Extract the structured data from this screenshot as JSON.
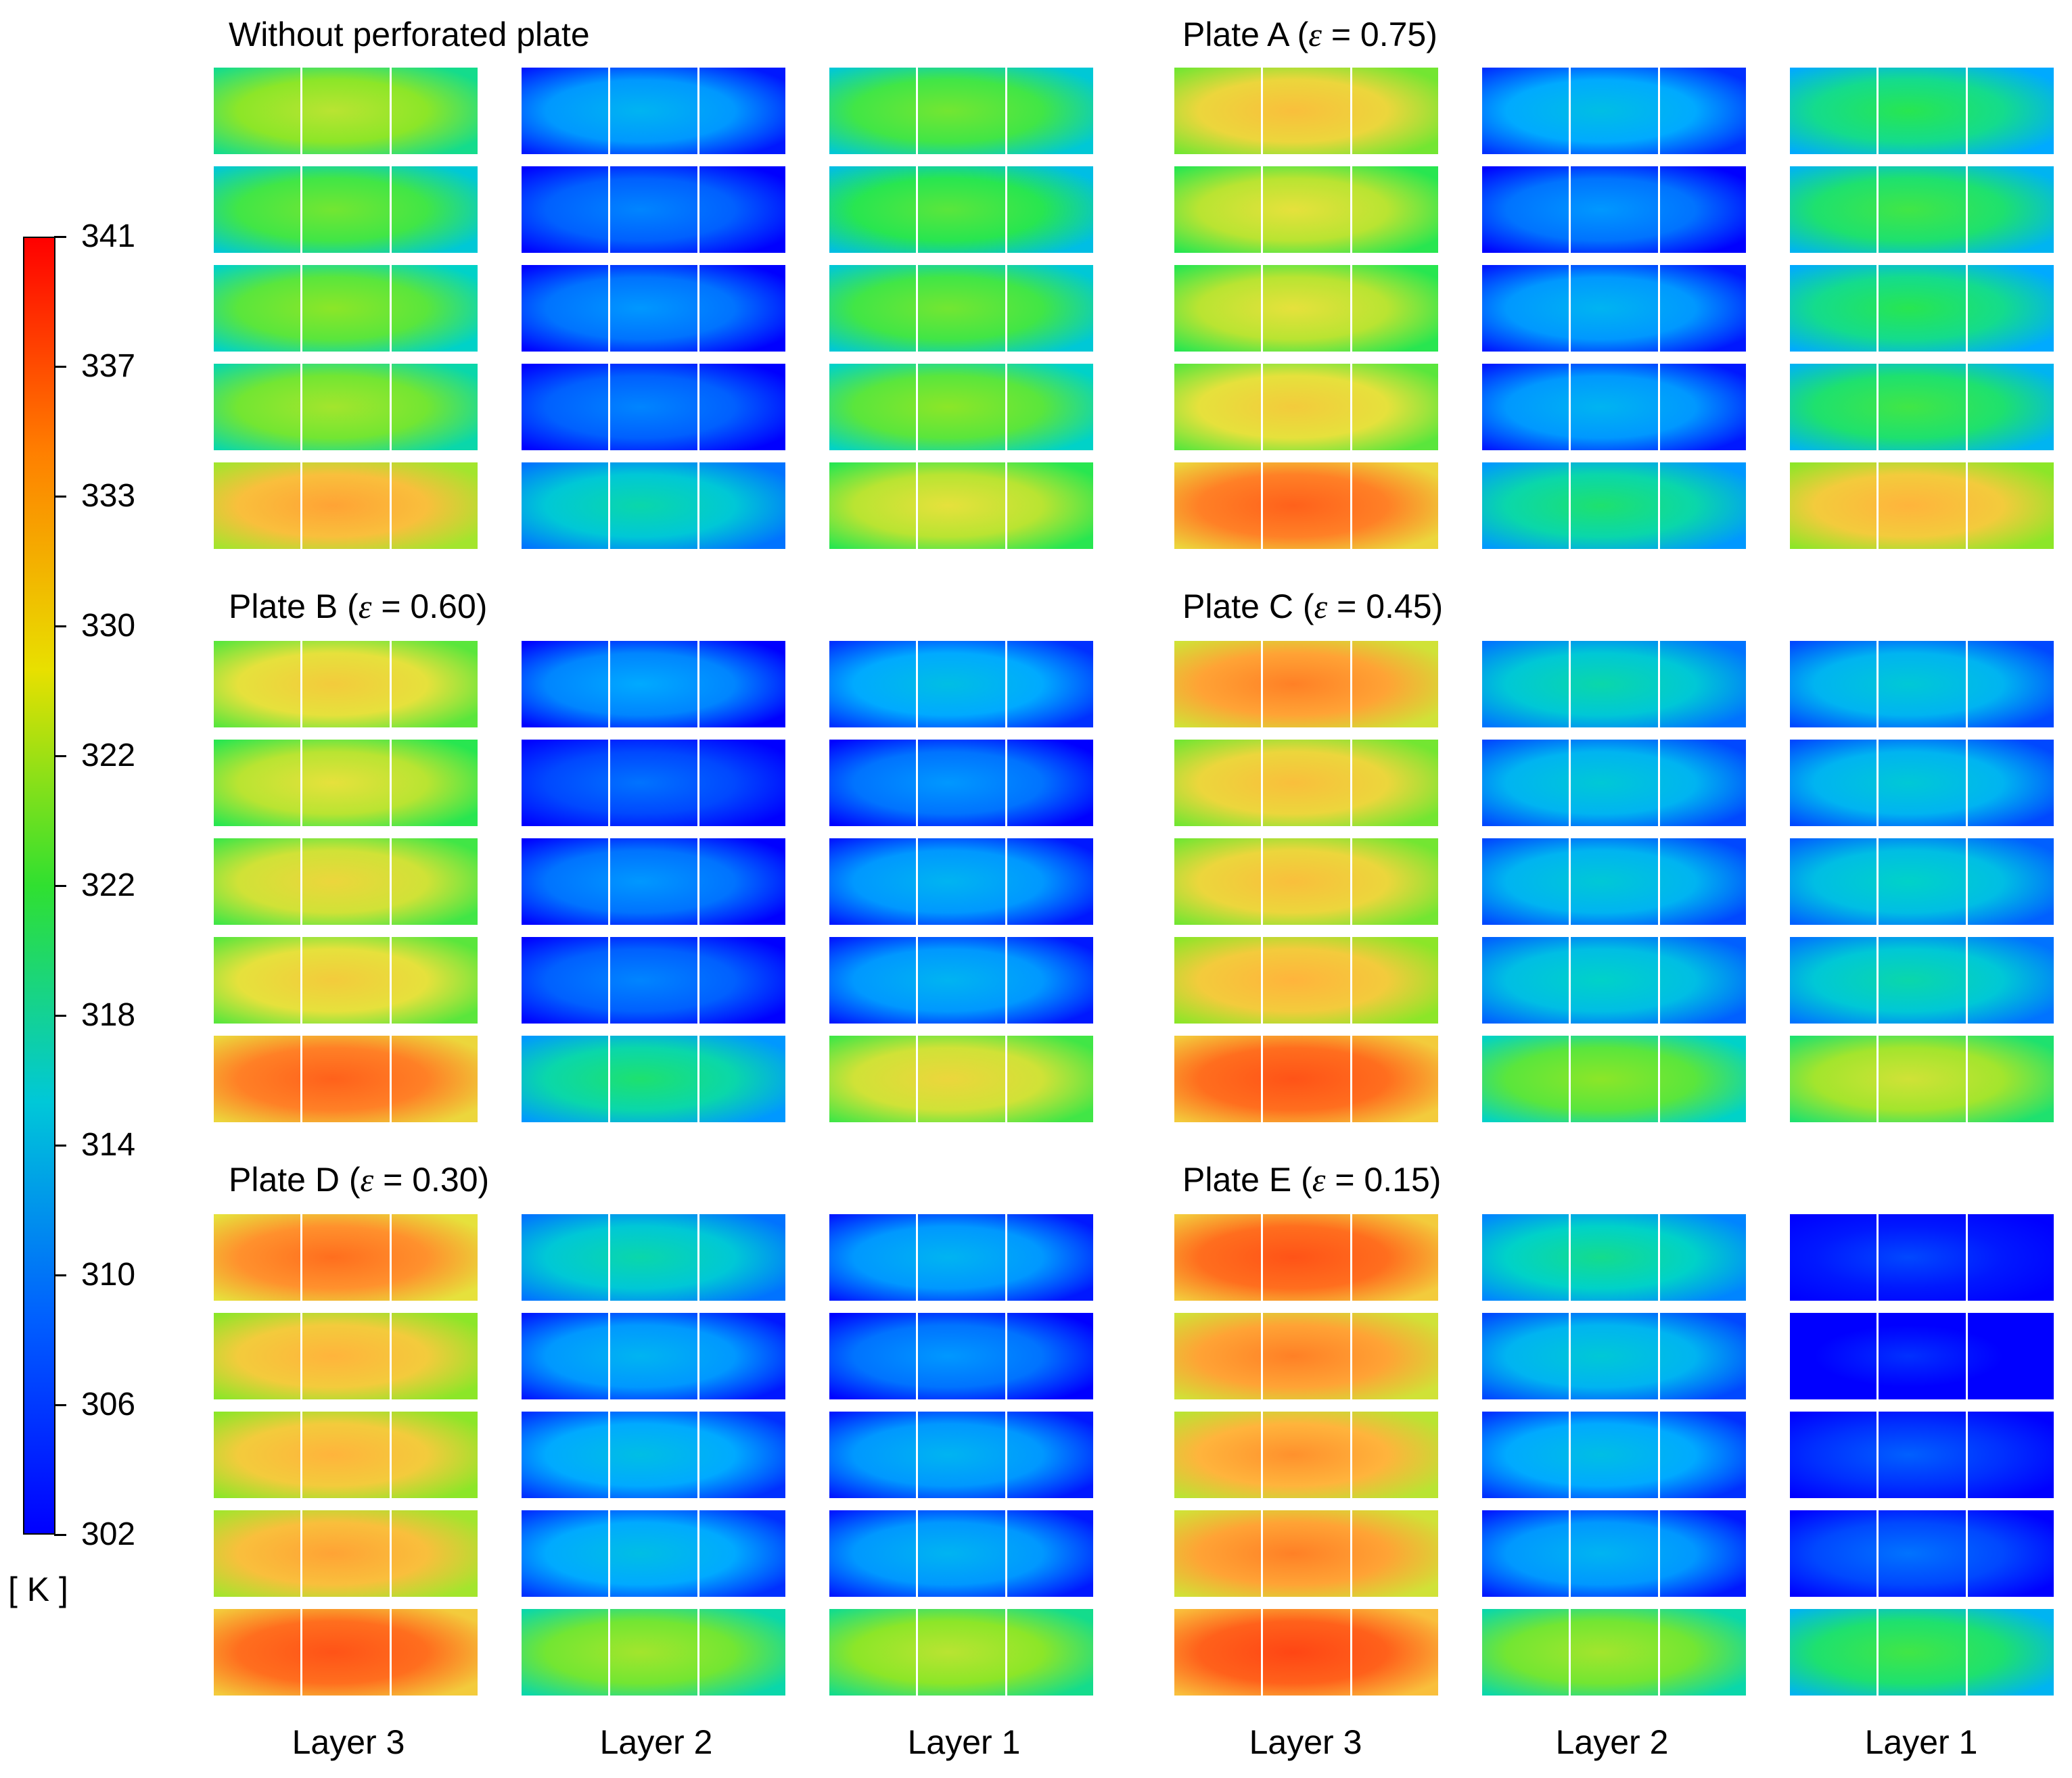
{
  "colorbar": {
    "ticks": [
      "341",
      "337",
      "333",
      "330",
      "322",
      "322",
      "318",
      "314",
      "310",
      "306",
      "302"
    ],
    "unit": "[ K ]",
    "colors": [
      "#ff0000",
      "#ff8000",
      "#e8e000",
      "#30e030",
      "#00c8d8",
      "#0060ff",
      "#0000ff"
    ]
  },
  "layer_labels": [
    "Layer 3",
    "Layer 2",
    "Layer 1"
  ],
  "panels": [
    {
      "title": "Without perforated plate",
      "eps": "",
      "rest": "",
      "temps": [
        [
          322,
          309,
          319
        ],
        [
          319,
          306,
          318
        ],
        [
          320,
          307,
          319
        ],
        [
          321,
          306,
          320
        ],
        [
          329,
          313,
          324
        ]
      ]
    },
    {
      "title": "Plate A (",
      "eps": "ε",
      "rest": " = 0.75)",
      "temps": [
        [
          327,
          310,
          316
        ],
        [
          324,
          307,
          317
        ],
        [
          324,
          309,
          316
        ],
        [
          326,
          309,
          317
        ],
        [
          333,
          315,
          328
        ]
      ]
    },
    {
      "title": "Plate B (",
      "eps": "ε",
      "rest": " = 0.60)",
      "temps": [
        [
          326,
          308,
          310
        ],
        [
          324,
          305,
          307
        ],
        [
          325,
          307,
          309
        ],
        [
          326,
          306,
          309
        ],
        [
          333,
          315,
          325
        ]
      ]
    },
    {
      "title": "Plate C (",
      "eps": "ε",
      "rest": " = 0.45)",
      "temps": [
        [
          331,
          313,
          311
        ],
        [
          327,
          311,
          311
        ],
        [
          327,
          311,
          312
        ],
        [
          328,
          312,
          313
        ],
        [
          334,
          320,
          323
        ]
      ]
    },
    {
      "title": "Plate D (",
      "eps": "ε",
      "rest": " = 0.30)",
      "temps": [
        [
          332,
          313,
          309
        ],
        [
          328,
          309,
          307
        ],
        [
          328,
          310,
          309
        ],
        [
          329,
          310,
          309
        ],
        [
          334,
          321,
          322
        ]
      ]
    },
    {
      "title": "Plate E (",
      "eps": "ε",
      "rest": " = 0.15)",
      "temps": [
        [
          334,
          314,
          303
        ],
        [
          331,
          311,
          302
        ],
        [
          330,
          310,
          304
        ],
        [
          331,
          309,
          305
        ],
        [
          335,
          321,
          317
        ]
      ]
    }
  ]
}
